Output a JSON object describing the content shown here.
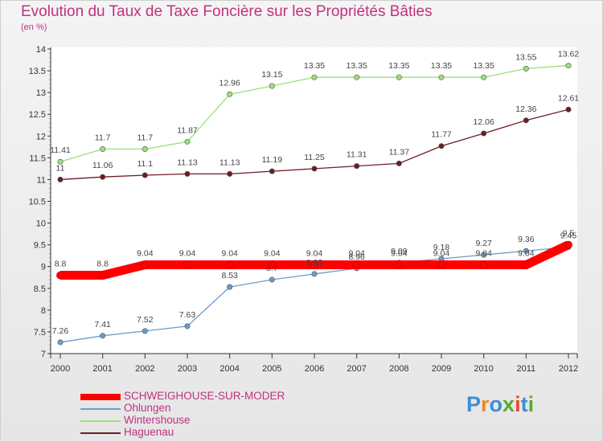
{
  "title": "Evolution du Taux de Taxe Foncière sur les Propriétés Bâties",
  "subtitle": "(en %)",
  "logo": {
    "text": "Proxiti",
    "colors": [
      "#3d8fd1",
      "#e88a2a",
      "#3d8fd1",
      "#5aa832",
      "#e84a2a",
      "#3d8fd1",
      "#5aa832"
    ]
  },
  "chart_data": {
    "type": "line",
    "x": [
      "2000",
      "2001",
      "2002",
      "2003",
      "2004",
      "2005",
      "2006",
      "2007",
      "2008",
      "2009",
      "2010",
      "2011",
      "2012"
    ],
    "ylim": [
      7,
      14
    ],
    "yticks": [
      "7",
      "7.5",
      "8",
      "8.5",
      "9",
      "9.5",
      "10",
      "10.5",
      "11",
      "11.5",
      "12",
      "12.5",
      "13",
      "13.5",
      "14"
    ],
    "grid": false,
    "legend": "bottom-left",
    "series": [
      {
        "name": "Haguenau",
        "color": "#6b1d24",
        "values": [
          11,
          11.06,
          11.1,
          11.13,
          11.13,
          11.19,
          11.25,
          11.31,
          11.37,
          11.77,
          12.06,
          12.36,
          12.61
        ],
        "labels": [
          "11",
          "11.06",
          "11.1",
          "11.13",
          "11.13",
          "11.19",
          "11.25",
          "11.31",
          "11.37",
          "11.77",
          "12.06",
          "12.36",
          "12.61"
        ]
      },
      {
        "name": "Wintershouse",
        "color": "#9be07a",
        "values": [
          11.41,
          11.7,
          11.7,
          11.87,
          12.96,
          13.15,
          13.35,
          13.35,
          13.35,
          13.35,
          13.35,
          13.55,
          13.62
        ],
        "labels": [
          "11.41",
          "11.7",
          "11.7",
          "11.87",
          "12.96",
          "13.15",
          "13.35",
          "13.35",
          "13.35",
          "13.35",
          "13.35",
          "13.55",
          "13.62"
        ]
      },
      {
        "name": "Ohlungen",
        "color": "#6b9ccc",
        "values": [
          7.26,
          7.41,
          7.52,
          7.63,
          8.53,
          8.7,
          8.83,
          8.96,
          9.09,
          9.18,
          9.27,
          9.36,
          9.45
        ],
        "labels": [
          "7.26",
          "7.41",
          "7.52",
          "7.63",
          "8.53",
          "8.7",
          "8.83",
          "8.96",
          "9.09",
          "9.18",
          "9.27",
          "9.36",
          "9.45"
        ]
      },
      {
        "name": "SCHWEIGHOUSE-SUR-MODER",
        "color": "#ff0000",
        "values": [
          8.8,
          8.8,
          9.04,
          9.04,
          9.04,
          9.04,
          9.04,
          9.04,
          9.04,
          9.04,
          9.04,
          9.04,
          9.5
        ],
        "labels": [
          "8.8",
          "8.8",
          "9.04",
          "9.04",
          "9.04",
          "9.04",
          "9.04",
          "9.04",
          "9.04",
          "9.04",
          "9.04",
          "9.04",
          "9.5"
        ]
      }
    ],
    "legend_order": [
      "SCHWEIGHOUSE-SUR-MODER",
      "Ohlungen",
      "Wintershouse",
      "Haguenau"
    ]
  }
}
